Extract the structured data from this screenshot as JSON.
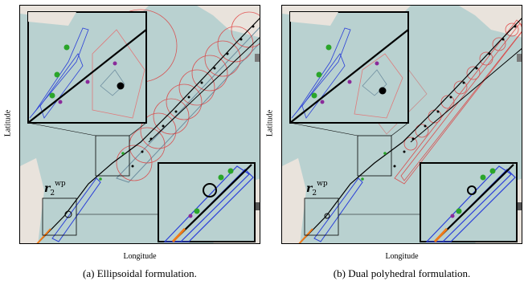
{
  "figure": {
    "left": {
      "ylabel": "Latitude",
      "xlabel": "Longitude",
      "caption": "(a) Ellipsoidal formulation.",
      "waypoint": {
        "base": "r",
        "sub": "2",
        "sup": "wp"
      }
    },
    "right": {
      "ylabel": "Latitude",
      "xlabel": "Longitude",
      "caption": "(b) Dual polyhedral formulation.",
      "waypoint": {
        "base": "r",
        "sub": "2",
        "sup": "wp"
      }
    }
  },
  "colors": {
    "map_water": "#b9d1d0",
    "map_land": "#e9e3dc",
    "ellipse_red": "#e03030",
    "polytope_blue": "#2a3fd8",
    "corridor": "#6f8fa0",
    "green_marker": "#2aa52a",
    "purple_marker": "#8a2a9a",
    "trajectory": "#000000",
    "start_segment": "#f07a18"
  },
  "icons": [
    "ellipse-region",
    "polyhedral-region",
    "waypoint-marker",
    "zoom-inset"
  ]
}
